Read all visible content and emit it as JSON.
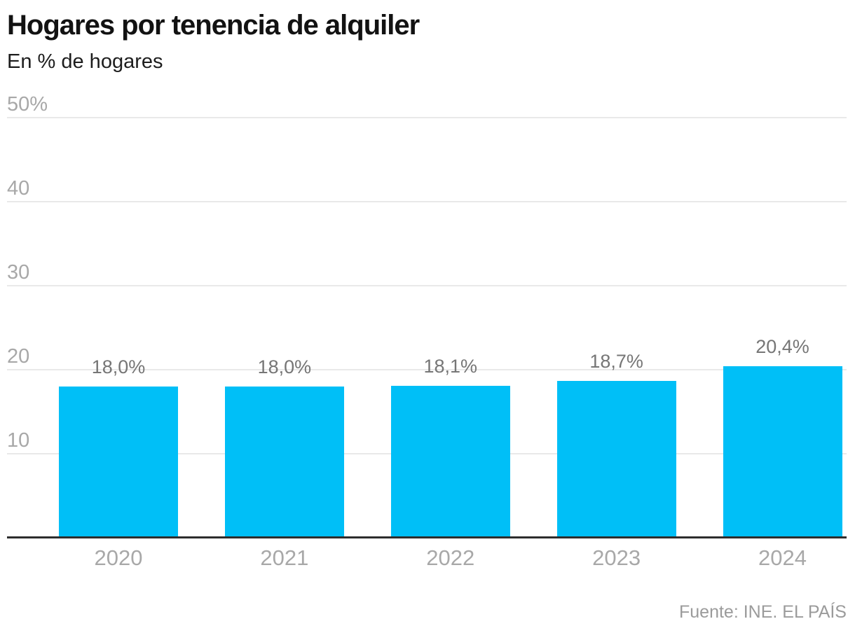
{
  "header": {
    "title": "Hogares por tenencia de alquiler",
    "subtitle": "En % de hogares"
  },
  "footer": {
    "source": "Fuente: INE. EL PAÍS"
  },
  "colors": {
    "bar": "#00bff7",
    "axis_label": "#a8a8a8",
    "value_label": "#767676",
    "gridline": "#e9e9e9",
    "baseline": "#2d2d2d",
    "title": "#121212",
    "source": "#9b9b9b"
  },
  "chart_data": {
    "type": "bar",
    "title": "Hogares por tenencia de alquiler",
    "subtitle": "En % de hogares",
    "categories": [
      "2020",
      "2021",
      "2022",
      "2023",
      "2024"
    ],
    "values": [
      18.0,
      18.0,
      18.1,
      18.7,
      20.4
    ],
    "value_labels": [
      "18,0%",
      "18,0%",
      "18,1%",
      "18,7%",
      "20,4%"
    ],
    "xlabel": "",
    "ylabel": "En % de hogares",
    "ylim": [
      0,
      50
    ],
    "yticks": [
      {
        "value": 10,
        "label": "10"
      },
      {
        "value": 20,
        "label": "20"
      },
      {
        "value": 30,
        "label": "30"
      },
      {
        "value": 40,
        "label": "40"
      },
      {
        "value": 50,
        "label": "50%"
      }
    ],
    "grid": true,
    "legend": false,
    "source": "Fuente: INE. EL PAÍS"
  }
}
